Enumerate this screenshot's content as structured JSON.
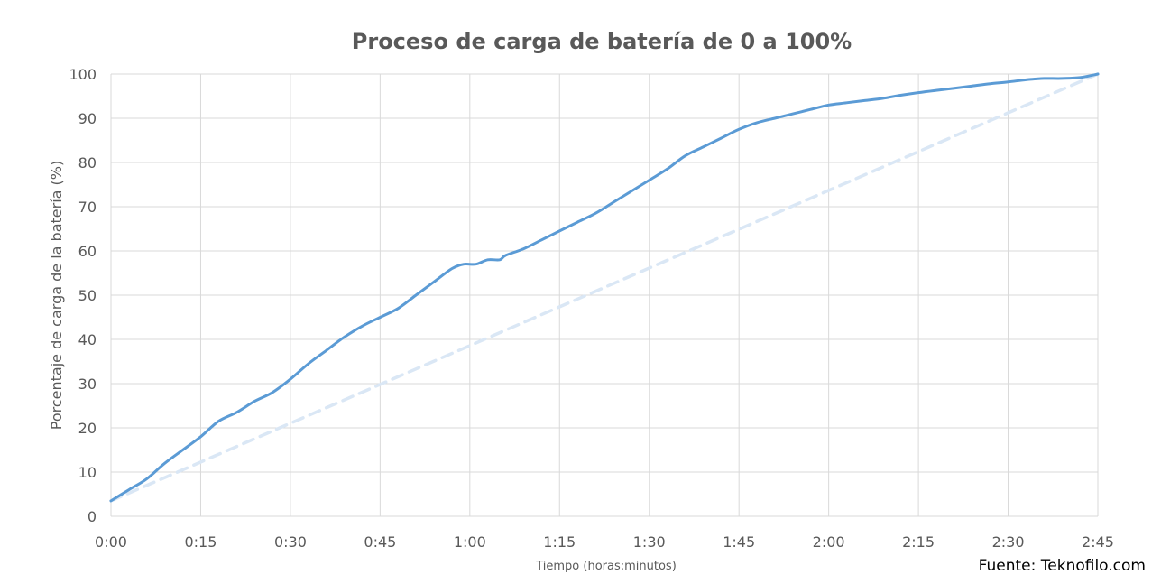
{
  "chart_data": {
    "type": "line",
    "title": "Proceso de carga de batería de 0 a 100%",
    "xlabel": "Tiempo (horas:minutos)",
    "ylabel": "Porcentaje de carga de la batería (%)",
    "source": "Fuente: Teknofilo.com",
    "x_tick_labels": [
      "0:00",
      "0:15",
      "0:30",
      "0:45",
      "1:00",
      "1:15",
      "1:30",
      "1:45",
      "2:00",
      "2:15",
      "2:30",
      "2:45"
    ],
    "y_ticks": [
      0,
      10,
      20,
      30,
      40,
      50,
      60,
      70,
      80,
      90,
      100
    ],
    "xlim": [
      "0:00",
      "2:45"
    ],
    "ylim": [
      0,
      100
    ],
    "grid": true,
    "legend": "none",
    "colors": {
      "series": "#5b9bd5",
      "reference": "#dae7f5",
      "grid": "#d9d9d9",
      "text": "#595959"
    },
    "series": [
      {
        "style": "solid",
        "points": [
          [
            "0:00",
            3.5
          ],
          [
            "0:03",
            6
          ],
          [
            "0:06",
            8.5
          ],
          [
            "0:09",
            12
          ],
          [
            "0:12",
            15
          ],
          [
            "0:15",
            18
          ],
          [
            "0:18",
            21.5
          ],
          [
            "0:21",
            23.5
          ],
          [
            "0:24",
            26
          ],
          [
            "0:27",
            28
          ],
          [
            "0:30",
            31
          ],
          [
            "0:33",
            34.5
          ],
          [
            "0:36",
            37.5
          ],
          [
            "0:39",
            40.5
          ],
          [
            "0:42",
            43
          ],
          [
            "0:45",
            45
          ],
          [
            "0:48",
            47
          ],
          [
            "0:51",
            50
          ],
          [
            "0:54",
            53
          ],
          [
            "0:57",
            56
          ],
          [
            "0:59",
            57
          ],
          [
            "1:01",
            57
          ],
          [
            "1:03",
            58
          ],
          [
            "1:05",
            58
          ],
          [
            "1:06",
            59
          ],
          [
            "1:09",
            60.5
          ],
          [
            "1:12",
            62.5
          ],
          [
            "1:15",
            64.5
          ],
          [
            "1:18",
            66.5
          ],
          [
            "1:21",
            68.5
          ],
          [
            "1:24",
            71
          ],
          [
            "1:27",
            73.5
          ],
          [
            "1:30",
            76
          ],
          [
            "1:33",
            78.5
          ],
          [
            "1:36",
            81.5
          ],
          [
            "1:39",
            83.5
          ],
          [
            "1:42",
            85.5
          ],
          [
            "1:45",
            87.5
          ],
          [
            "1:48",
            89
          ],
          [
            "1:51",
            90
          ],
          [
            "1:54",
            91
          ],
          [
            "1:57",
            92
          ],
          [
            "2:00",
            93
          ],
          [
            "2:03",
            93.5
          ],
          [
            "2:06",
            94
          ],
          [
            "2:09",
            94.5
          ],
          [
            "2:12",
            95.2
          ],
          [
            "2:15",
            95.8
          ],
          [
            "2:18",
            96.3
          ],
          [
            "2:21",
            96.8
          ],
          [
            "2:24",
            97.3
          ],
          [
            "2:27",
            97.8
          ],
          [
            "2:30",
            98.2
          ],
          [
            "2:33",
            98.7
          ],
          [
            "2:36",
            99
          ],
          [
            "2:39",
            99
          ],
          [
            "2:42",
            99.2
          ],
          [
            "2:45",
            100
          ]
        ]
      },
      {
        "style": "dashed",
        "points": [
          [
            "0:00",
            3.5
          ],
          [
            "2:45",
            100
          ]
        ]
      }
    ]
  }
}
